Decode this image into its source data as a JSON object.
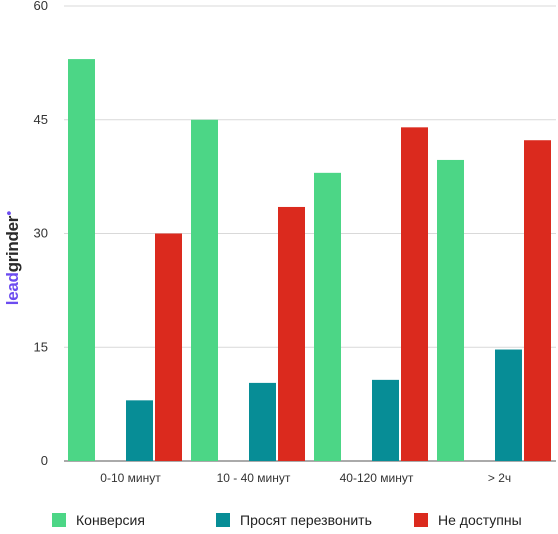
{
  "logo": {
    "lead": "lead",
    "grinder": "grinder",
    "mark": "●"
  },
  "colors": {
    "conversion": "#4cd686",
    "callback": "#078d96",
    "unavailable": "#db2a1e",
    "grid": "#d9d9d9",
    "axis": "#555555"
  },
  "chart_data": {
    "type": "bar",
    "categories": [
      "0-10 минут",
      "10 - 40 минут",
      "40-120 минут",
      "> 2ч"
    ],
    "series": [
      {
        "name": "Конверсия",
        "values": [
          53,
          45,
          38,
          39.7
        ]
      },
      {
        "name": "Просят перезвонить",
        "values": [
          8,
          10.3,
          10.7,
          14.7
        ]
      },
      {
        "name": "Не доступны",
        "values": [
          30,
          33.5,
          44,
          42.3
        ]
      }
    ],
    "yticks": [
      0,
      15,
      30,
      45,
      60
    ],
    "ylim": [
      0,
      60
    ],
    "grid": true,
    "legend_position": "bottom"
  }
}
